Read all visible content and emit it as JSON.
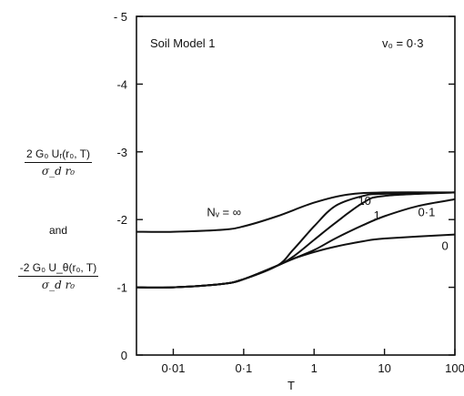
{
  "ylabel": {
    "upper": {
      "numerator": "2 G₀ Uᵣ(r₀, T)",
      "denominator": "σ_d  r₀"
    },
    "joiner": "and",
    "lower": {
      "numerator": "-2 G₀ U_θ(r₀, T)",
      "denominator": "σ_d  r₀"
    }
  },
  "chart_data": {
    "type": "line",
    "title": "",
    "annotations": {
      "model": "Soil Model 1",
      "poisson": "v₀ = 0·3"
    },
    "xlabel": "T",
    "x_scale": "log",
    "xlim": [
      0.003,
      100
    ],
    "ylim": [
      0,
      -5
    ],
    "x_ticks": [
      {
        "value": 0.01,
        "label": "0·01"
      },
      {
        "value": 0.1,
        "label": "0·1"
      },
      {
        "value": 1,
        "label": "1"
      },
      {
        "value": 10,
        "label": "10"
      },
      {
        "value": 100,
        "label": "100"
      }
    ],
    "y_ticks": [
      {
        "value": 0,
        "label": "0"
      },
      {
        "value": -1,
        "label": "-1"
      },
      {
        "value": -2,
        "label": "-2"
      },
      {
        "value": -3,
        "label": "-3"
      },
      {
        "value": -4,
        "label": "-4"
      },
      {
        "value": -5,
        "label": "- 5"
      }
    ],
    "series": [
      {
        "name": "Nᵥ = ∞",
        "label_x": 0.03,
        "label_y": -2.05,
        "x": [
          0.003,
          0.01,
          0.05,
          0.1,
          0.3,
          1,
          3,
          10,
          100
        ],
        "y": [
          -1.82,
          -1.82,
          -1.85,
          -1.9,
          -2.05,
          -2.25,
          -2.37,
          -2.4,
          -2.4
        ]
      },
      {
        "name": "10",
        "label_x": 4.2,
        "label_y": -2.22,
        "x": [
          0.003,
          0.01,
          0.05,
          0.1,
          0.3,
          0.5,
          1,
          2,
          5,
          10,
          100
        ],
        "y": [
          -1.0,
          -1.0,
          -1.05,
          -1.12,
          -1.32,
          -1.55,
          -1.9,
          -2.2,
          -2.35,
          -2.38,
          -2.4
        ]
      },
      {
        "name": "1",
        "label_x": 7,
        "label_y": -2.0,
        "x": [
          0.003,
          0.01,
          0.05,
          0.1,
          0.3,
          0.5,
          1,
          2,
          5,
          10,
          100
        ],
        "y": [
          -1.0,
          -1.0,
          -1.05,
          -1.12,
          -1.32,
          -1.45,
          -1.7,
          -1.95,
          -2.25,
          -2.35,
          -2.4
        ]
      },
      {
        "name": "0·1",
        "label_x": 30,
        "label_y": -2.05,
        "x": [
          0.003,
          0.01,
          0.05,
          0.1,
          0.3,
          0.5,
          1,
          2,
          5,
          10,
          30,
          100
        ],
        "y": [
          -1.0,
          -1.0,
          -1.05,
          -1.12,
          -1.32,
          -1.42,
          -1.55,
          -1.72,
          -1.92,
          -2.05,
          -2.2,
          -2.3
        ]
      },
      {
        "name": "0",
        "label_x": 65,
        "label_y": -1.55,
        "x": [
          0.003,
          0.01,
          0.05,
          0.1,
          0.3,
          0.5,
          1,
          2,
          5,
          10,
          100
        ],
        "y": [
          -1.0,
          -1.0,
          -1.05,
          -1.12,
          -1.32,
          -1.42,
          -1.52,
          -1.6,
          -1.68,
          -1.72,
          -1.78
        ]
      }
    ]
  }
}
